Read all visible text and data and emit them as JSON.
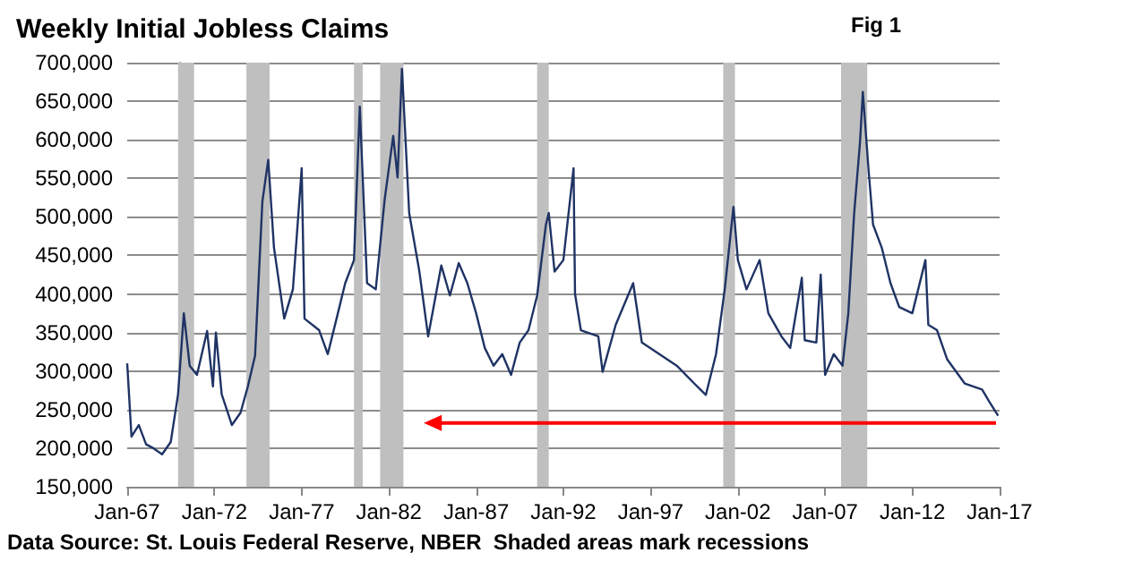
{
  "chart_data": {
    "type": "line",
    "title": "Weekly Initial Jobless Claims",
    "annotations": [
      "Fig 1",
      "Data Source: St. Louis Federal Reserve, NBER  Shaded areas mark recessions"
    ],
    "x": [
      "1967-01",
      "1967-04",
      "1967-09",
      "1968-02",
      "1968-07",
      "1969-01",
      "1969-07",
      "1969-12",
      "1970-04",
      "1970-08",
      "1971-01",
      "1971-08",
      "1971-12",
      "1972-02",
      "1972-06",
      "1973-01",
      "1973-07",
      "1973-12",
      "1974-05",
      "1974-10",
      "1975-02",
      "1975-06",
      "1976-01",
      "1976-07",
      "1977-01",
      "1977-03",
      "1978-01",
      "1978-07",
      "1979-01",
      "1979-07",
      "1980-01",
      "1980-05",
      "1980-10",
      "1981-04",
      "1981-10",
      "1982-04",
      "1982-07",
      "1982-10",
      "1983-03",
      "1983-10",
      "1984-04",
      "1985-01",
      "1985-07",
      "1986-01",
      "1986-07",
      "1987-01",
      "1987-07",
      "1988-01",
      "1988-07",
      "1989-01",
      "1989-07",
      "1990-01",
      "1990-07",
      "1991-01",
      "1991-03",
      "1991-07",
      "1992-01",
      "1992-08",
      "1992-09",
      "1993-01",
      "1994-01",
      "1994-04",
      "1995-01",
      "1996-01",
      "1996-07",
      "1997-07",
      "1998-07",
      "1999-07",
      "2000-03",
      "2000-10",
      "2001-04",
      "2001-10",
      "2002-01",
      "2002-07",
      "2003-04",
      "2003-10",
      "2004-07",
      "2005-01",
      "2005-09",
      "2005-11",
      "2006-07",
      "2006-10",
      "2007-01",
      "2007-07",
      "2008-01",
      "2008-05",
      "2008-09",
      "2009-01",
      "2009-03",
      "2009-07",
      "2009-10",
      "2010-04",
      "2010-10",
      "2011-04",
      "2012-01",
      "2012-10",
      "2012-12",
      "2013-06",
      "2014-01",
      "2015-01",
      "2016-01",
      "2016-06",
      "2016-12"
    ],
    "series": [
      {
        "color": "#1f3364",
        "values": [
          310000,
          215000,
          230000,
          205000,
          200000,
          192000,
          208000,
          270000,
          375000,
          307000,
          295000,
          352000,
          280000,
          350000,
          270000,
          230000,
          246000,
          280000,
          320000,
          520000,
          574000,
          460000,
          368000,
          406000,
          563000,
          368000,
          353000,
          322000,
          368000,
          414000,
          444000,
          643000,
          414000,
          406000,
          521000,
          605000,
          551000,
          692000,
          505000,
          429000,
          345000,
          437000,
          398000,
          440000,
          414000,
          375000,
          330000,
          307000,
          322000,
          295000,
          337000,
          353000,
          398000,
          490000,
          505000,
          429000,
          444000,
          563000,
          400000,
          353000,
          345000,
          299000,
          360000,
          414000,
          337000,
          322000,
          307000,
          284000,
          269000,
          322000,
          406000,
          513000,
          444000,
          406000,
          444000,
          375000,
          345000,
          330000,
          421000,
          340000,
          337000,
          425000,
          295000,
          322000,
          307000,
          375000,
          505000,
          597000,
          662000,
          559000,
          490000,
          460000,
          414000,
          383000,
          375000,
          444000,
          360000,
          353000,
          315000,
          284000,
          276000,
          260000,
          242000
        ]
      }
    ],
    "xlim": [
      "1967-01",
      "2017-01"
    ],
    "xticks": [
      {
        "value": "1967-01",
        "label": "Jan-67"
      },
      {
        "value": "1972-01",
        "label": "Jan-72"
      },
      {
        "value": "1977-01",
        "label": "Jan-77"
      },
      {
        "value": "1982-01",
        "label": "Jan-82"
      },
      {
        "value": "1987-01",
        "label": "Jan-87"
      },
      {
        "value": "1992-01",
        "label": "Jan-92"
      },
      {
        "value": "1997-01",
        "label": "Jan-97"
      },
      {
        "value": "2002-01",
        "label": "Jan-02"
      },
      {
        "value": "2007-01",
        "label": "Jan-07"
      },
      {
        "value": "2012-01",
        "label": "Jan-12"
      },
      {
        "value": "2017-01",
        "label": "Jan-17"
      }
    ],
    "ylim": [
      150000,
      700000
    ],
    "yticks": [
      {
        "value": 150000,
        "label": "150,000"
      },
      {
        "value": 200000,
        "label": "200,000"
      },
      {
        "value": 250000,
        "label": "250,000"
      },
      {
        "value": 300000,
        "label": "300,000"
      },
      {
        "value": 350000,
        "label": "350,000"
      },
      {
        "value": 400000,
        "label": "400,000"
      },
      {
        "value": 450000,
        "label": "450,000"
      },
      {
        "value": 500000,
        "label": "500,000"
      },
      {
        "value": 550000,
        "label": "550,000"
      },
      {
        "value": 600000,
        "label": "600,000"
      },
      {
        "value": 650000,
        "label": "650,000"
      },
      {
        "value": 700000,
        "label": "700,000"
      }
    ],
    "bands": [
      {
        "axis": "x",
        "from": "1969-12",
        "to": "1970-11",
        "color": "#bfbfbf"
      },
      {
        "axis": "x",
        "from": "1973-11",
        "to": "1975-03",
        "color": "#bfbfbf"
      },
      {
        "axis": "x",
        "from": "1980-01",
        "to": "1980-07",
        "color": "#bfbfbf"
      },
      {
        "axis": "x",
        "from": "1981-07",
        "to": "1982-11",
        "color": "#bfbfbf"
      },
      {
        "axis": "x",
        "from": "1990-07",
        "to": "1991-03",
        "color": "#bfbfbf"
      },
      {
        "axis": "x",
        "from": "2001-03",
        "to": "2001-11",
        "color": "#bfbfbf"
      },
      {
        "axis": "x",
        "from": "2007-12",
        "to": "2009-06",
        "color": "#bfbfbf"
      }
    ],
    "grid": "y",
    "marker": "none",
    "line_style": "solid"
  }
}
